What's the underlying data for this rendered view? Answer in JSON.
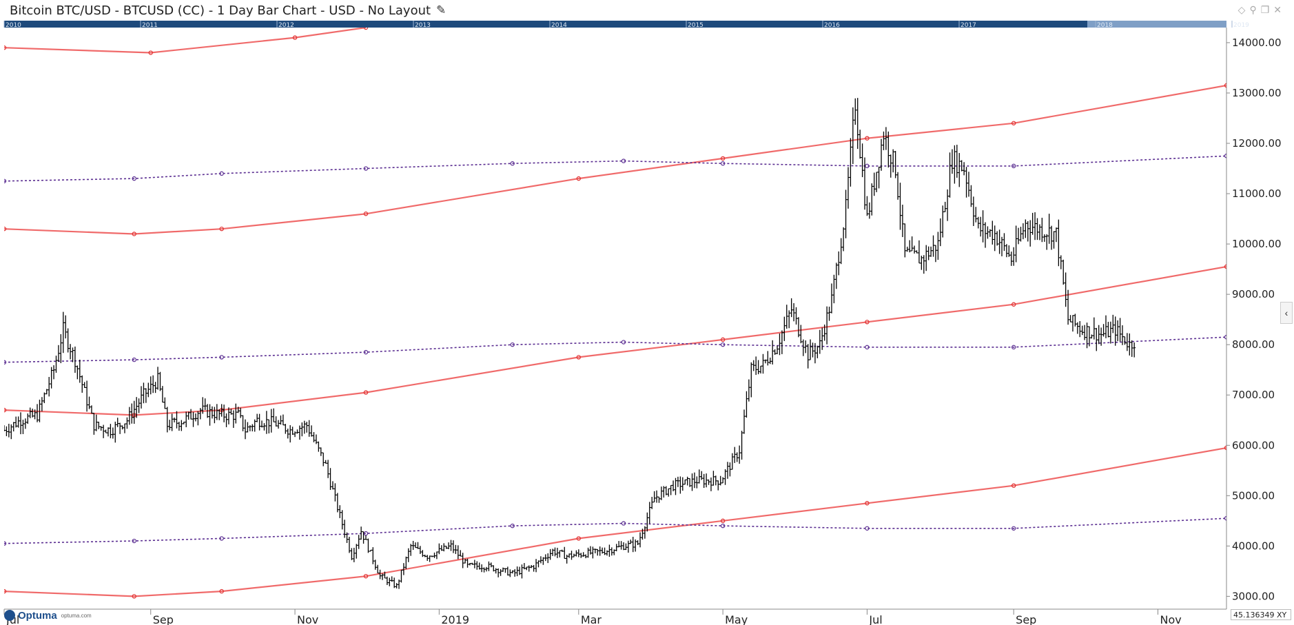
{
  "window": {
    "title": "Bitcoin BTC/USD - BTCUSD (CC) - 1 Day Bar Chart - USD - No Layout",
    "edit_icon": "pencil-icon",
    "icons": [
      "diamond-icon",
      "pin-icon",
      "restore-icon",
      "close-icon"
    ]
  },
  "overview_bar": {
    "years": [
      "2010",
      "2011",
      "2012",
      "2013",
      "2014",
      "2015",
      "2016",
      "2017",
      "2018",
      "2019"
    ]
  },
  "footer": {
    "logo": "Optuma",
    "logo_url": "optuma.com",
    "readout": "45.136349",
    "readout_suffix": "XY"
  },
  "colors": {
    "price": "#000000",
    "solid_lines": "#f06a6a",
    "dotted_lines": "#5a2d91",
    "overview_bg": "#1e4a7c"
  },
  "chart_data": {
    "type": "ohlc-bar",
    "title": "Bitcoin BTC/USD - BTCUSD (CC) - 1 Day Bar Chart - USD",
    "ylim": [
      2800,
      14300
    ],
    "y_ticks": [
      3000,
      4000,
      5000,
      6000,
      7000,
      8000,
      9000,
      10000,
      11000,
      12000,
      13000,
      14000
    ],
    "y_tick_labels": [
      "3000.00",
      "4000.00",
      "5000.00",
      "6000.00",
      "7000.00",
      "8000.00",
      "9000.00",
      "10000.00",
      "11000.00",
      "12000.00",
      "13000.00",
      "14000.00"
    ],
    "x_range": [
      "2018-07-01",
      "2019-11-30"
    ],
    "x_ticks": [
      {
        "label": "Jul",
        "date": "2018-07-01"
      },
      {
        "label": "Sep",
        "date": "2018-09-01"
      },
      {
        "label": "Nov",
        "date": "2018-11-01"
      },
      {
        "label": "2019",
        "date": "2019-01-01"
      },
      {
        "label": "Mar",
        "date": "2019-03-01"
      },
      {
        "label": "May",
        "date": "2019-05-01"
      },
      {
        "label": "Jul",
        "date": "2019-07-01"
      },
      {
        "label": "Sep",
        "date": "2019-09-01"
      },
      {
        "label": "Nov",
        "date": "2019-11-01"
      }
    ],
    "price_series_close": [
      [
        "2018-07-01",
        6300
      ],
      [
        "2018-07-08",
        6500
      ],
      [
        "2018-07-15",
        6600
      ],
      [
        "2018-07-22",
        7500
      ],
      [
        "2018-07-26",
        8300
      ],
      [
        "2018-07-31",
        7700
      ],
      [
        "2018-08-08",
        6400
      ],
      [
        "2018-08-15",
        6300
      ],
      [
        "2018-08-22",
        6500
      ],
      [
        "2018-08-29",
        7000
      ],
      [
        "2018-09-04",
        7300
      ],
      [
        "2018-09-08",
        6400
      ],
      [
        "2018-09-15",
        6500
      ],
      [
        "2018-09-22",
        6700
      ],
      [
        "2018-10-01",
        6600
      ],
      [
        "2018-10-08",
        6600
      ],
      [
        "2018-10-11",
        6300
      ],
      [
        "2018-10-16",
        6500
      ],
      [
        "2018-10-23",
        6450
      ],
      [
        "2018-10-30",
        6300
      ],
      [
        "2018-11-06",
        6400
      ],
      [
        "2018-11-14",
        5600
      ],
      [
        "2018-11-20",
        4600
      ],
      [
        "2018-11-25",
        3800
      ],
      [
        "2018-11-29",
        4300
      ],
      [
        "2018-12-07",
        3400
      ],
      [
        "2018-12-14",
        3200
      ],
      [
        "2018-12-20",
        4000
      ],
      [
        "2018-12-27",
        3800
      ],
      [
        "2019-01-06",
        4000
      ],
      [
        "2019-01-13",
        3600
      ],
      [
        "2019-01-21",
        3600
      ],
      [
        "2019-02-01",
        3450
      ],
      [
        "2019-02-10",
        3600
      ],
      [
        "2019-02-18",
        3900
      ],
      [
        "2019-02-24",
        3800
      ],
      [
        "2019-03-04",
        3850
      ],
      [
        "2019-03-12",
        3900
      ],
      [
        "2019-03-20",
        4000
      ],
      [
        "2019-03-26",
        4050
      ],
      [
        "2019-04-02",
        4950
      ],
      [
        "2019-04-10",
        5200
      ],
      [
        "2019-04-20",
        5300
      ],
      [
        "2019-04-30",
        5300
      ],
      [
        "2019-05-08",
        5900
      ],
      [
        "2019-05-13",
        7500
      ],
      [
        "2019-05-18",
        7600
      ],
      [
        "2019-05-24",
        8000
      ],
      [
        "2019-05-30",
        8700
      ],
      [
        "2019-06-06",
        7800
      ],
      [
        "2019-06-11",
        8000
      ],
      [
        "2019-06-16",
        8900
      ],
      [
        "2019-06-22",
        10700
      ],
      [
        "2019-06-26",
        12800
      ],
      [
        "2019-07-01",
        10500
      ],
      [
        "2019-07-08",
        12200
      ],
      [
        "2019-07-13",
        11500
      ],
      [
        "2019-07-17",
        9800
      ],
      [
        "2019-07-24",
        9700
      ],
      [
        "2019-07-31",
        10000
      ],
      [
        "2019-08-06",
        11700
      ],
      [
        "2019-08-11",
        11500
      ],
      [
        "2019-08-17",
        10300
      ],
      [
        "2019-08-24",
        10200
      ],
      [
        "2019-08-31",
        9700
      ],
      [
        "2019-09-06",
        10400
      ],
      [
        "2019-09-12",
        10300
      ],
      [
        "2019-09-19",
        10200
      ],
      [
        "2019-09-24",
        8500
      ],
      [
        "2019-09-30",
        8300
      ],
      [
        "2019-10-08",
        8200
      ],
      [
        "2019-10-14",
        8300
      ],
      [
        "2019-10-20",
        8000
      ],
      [
        "2019-10-23",
        8100
      ]
    ],
    "overlay_lines": [
      {
        "style": "solid",
        "points": [
          [
            "2018-07-01",
            13900
          ],
          [
            "2018-09-01",
            13800
          ],
          [
            "2018-11-01",
            14100
          ],
          [
            "2018-12-01",
            14300
          ]
        ]
      },
      {
        "style": "solid",
        "points": [
          [
            "2018-07-01",
            10300
          ],
          [
            "2018-08-25",
            10200
          ],
          [
            "2018-10-01",
            10300
          ],
          [
            "2018-12-01",
            10600
          ],
          [
            "2019-03-01",
            11300
          ],
          [
            "2019-05-01",
            11700
          ],
          [
            "2019-07-01",
            12100
          ],
          [
            "2019-09-01",
            12400
          ],
          [
            "2019-11-30",
            13150
          ]
        ]
      },
      {
        "style": "solid",
        "points": [
          [
            "2018-07-01",
            6700
          ],
          [
            "2018-08-25",
            6600
          ],
          [
            "2018-10-01",
            6700
          ],
          [
            "2018-12-01",
            7050
          ],
          [
            "2019-03-01",
            7750
          ],
          [
            "2019-05-01",
            8100
          ],
          [
            "2019-07-01",
            8450
          ],
          [
            "2019-09-01",
            8800
          ],
          [
            "2019-11-30",
            9550
          ]
        ]
      },
      {
        "style": "solid",
        "points": [
          [
            "2018-07-01",
            3100
          ],
          [
            "2018-08-25",
            3000
          ],
          [
            "2018-10-01",
            3100
          ],
          [
            "2018-12-01",
            3400
          ],
          [
            "2019-03-01",
            4150
          ],
          [
            "2019-05-01",
            4500
          ],
          [
            "2019-07-01",
            4850
          ],
          [
            "2019-09-01",
            5200
          ],
          [
            "2019-11-30",
            5950
          ]
        ]
      },
      {
        "style": "dotted",
        "points": [
          [
            "2018-07-01",
            11250
          ],
          [
            "2018-08-25",
            11300
          ],
          [
            "2018-10-01",
            11400
          ],
          [
            "2018-12-01",
            11500
          ],
          [
            "2019-02-01",
            11600
          ],
          [
            "2019-03-20",
            11650
          ],
          [
            "2019-05-01",
            11600
          ],
          [
            "2019-07-01",
            11550
          ],
          [
            "2019-09-01",
            11550
          ],
          [
            "2019-11-30",
            11750
          ]
        ]
      },
      {
        "style": "dotted",
        "points": [
          [
            "2018-07-01",
            7650
          ],
          [
            "2018-08-25",
            7700
          ],
          [
            "2018-10-01",
            7750
          ],
          [
            "2018-12-01",
            7850
          ],
          [
            "2019-02-01",
            8000
          ],
          [
            "2019-03-20",
            8050
          ],
          [
            "2019-05-01",
            8000
          ],
          [
            "2019-07-01",
            7950
          ],
          [
            "2019-09-01",
            7950
          ],
          [
            "2019-11-30",
            8150
          ]
        ]
      },
      {
        "style": "dotted",
        "points": [
          [
            "2018-07-01",
            4050
          ],
          [
            "2018-08-25",
            4100
          ],
          [
            "2018-10-01",
            4150
          ],
          [
            "2018-12-01",
            4250
          ],
          [
            "2019-02-01",
            4400
          ],
          [
            "2019-03-20",
            4450
          ],
          [
            "2019-05-01",
            4400
          ],
          [
            "2019-07-01",
            4350
          ],
          [
            "2019-09-01",
            4350
          ],
          [
            "2019-11-30",
            4550
          ]
        ]
      }
    ],
    "grid": false
  }
}
